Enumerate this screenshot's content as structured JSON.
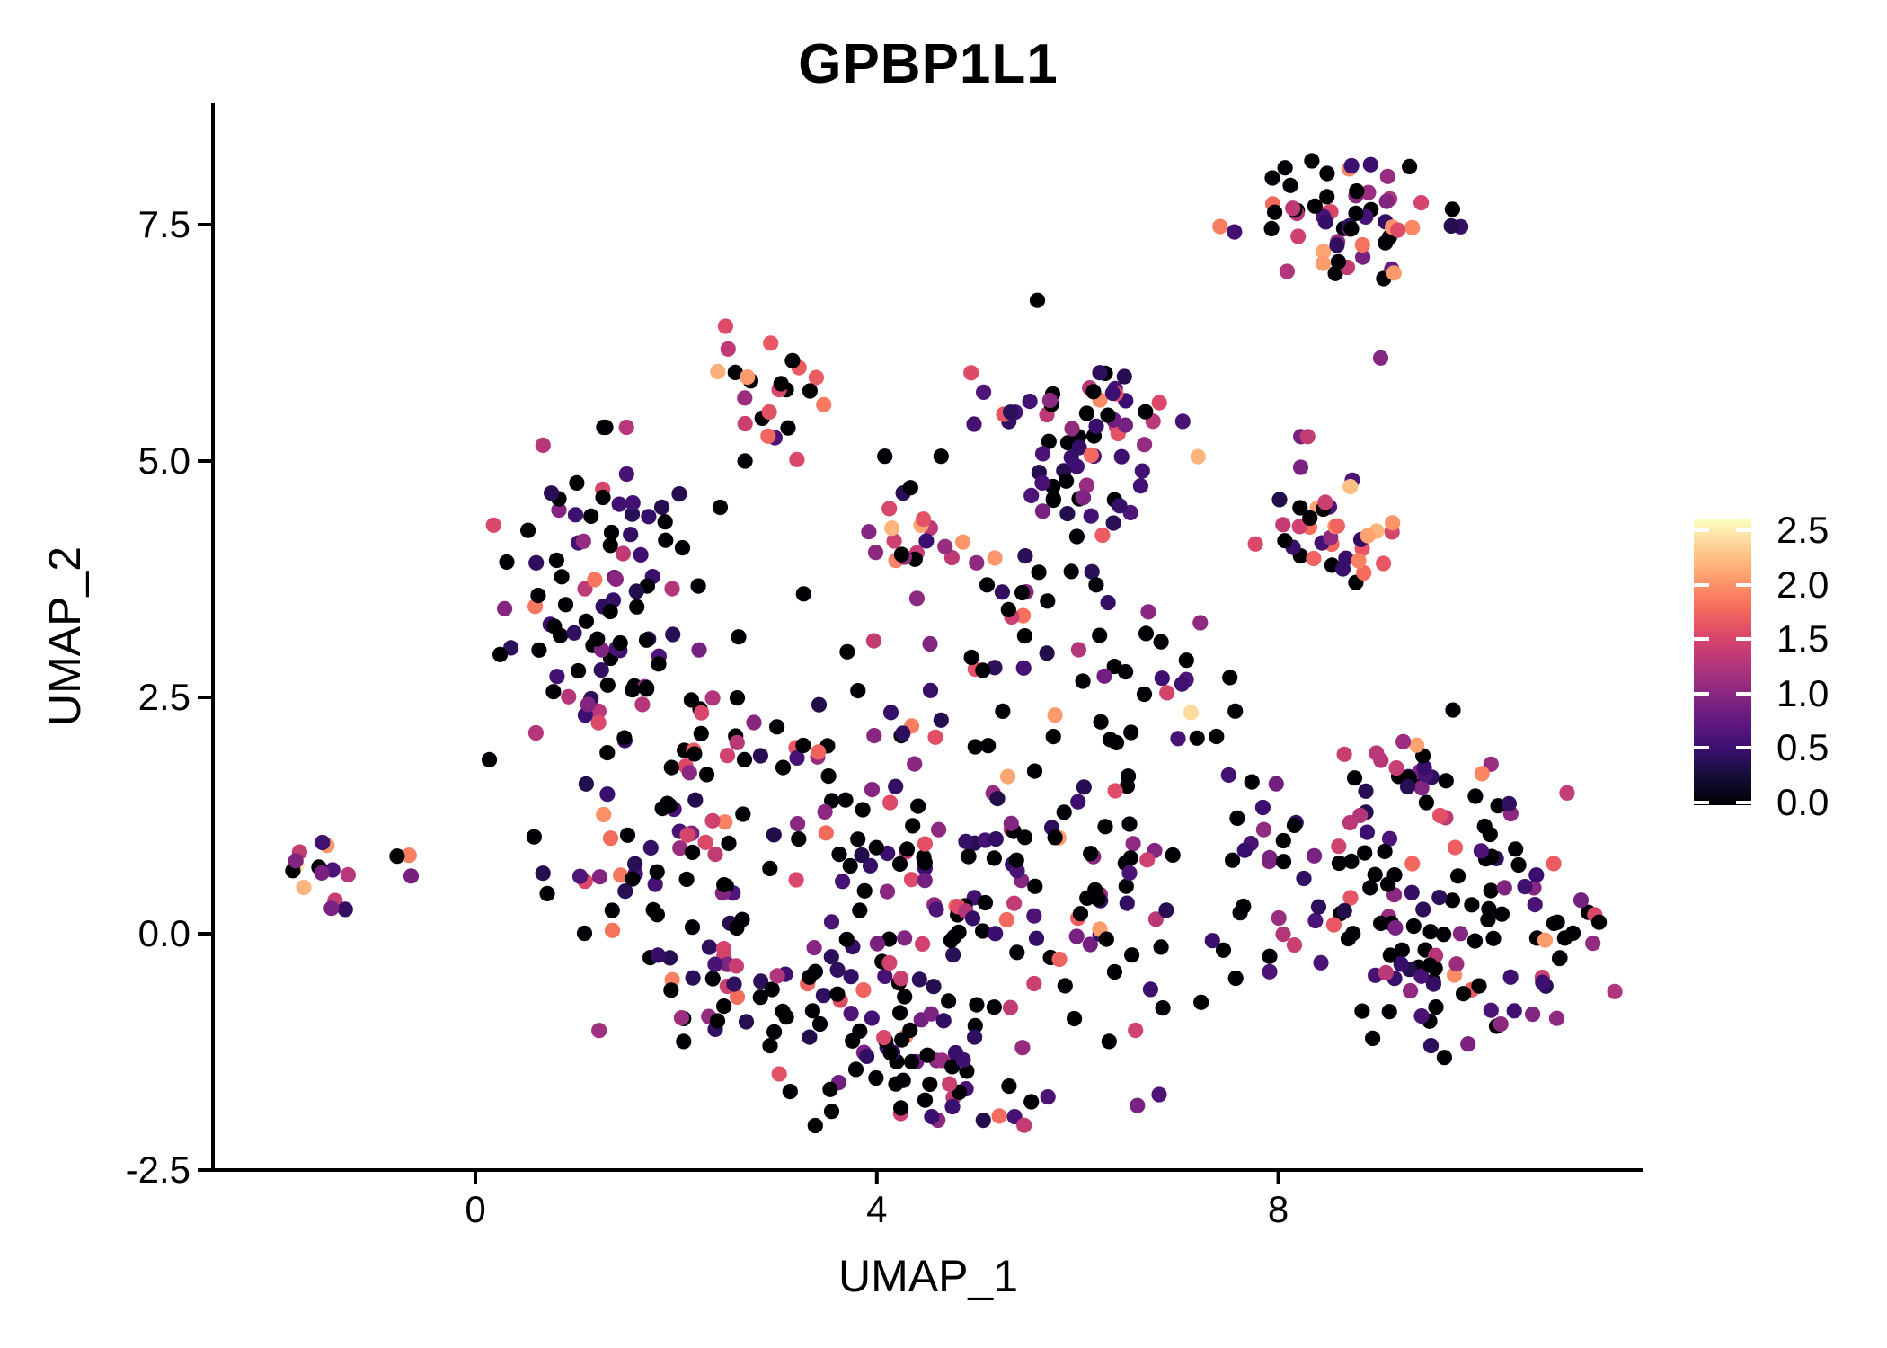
{
  "chart_data": {
    "type": "scatter",
    "title": "GPBP1L1",
    "xlabel": "UMAP_1",
    "ylabel": "UMAP_2",
    "x_ticks": [
      {
        "value": 0,
        "label": "0"
      },
      {
        "value": 4,
        "label": "4"
      },
      {
        "value": 8,
        "label": "8"
      }
    ],
    "y_ticks": [
      {
        "value": 7.5,
        "label": "7.5"
      },
      {
        "value": 5.0,
        "label": "5.0"
      },
      {
        "value": 2.5,
        "label": "2.5"
      },
      {
        "value": 0.0,
        "label": "0.0"
      },
      {
        "value": -2.5,
        "label": "-2.5"
      }
    ],
    "xlim": [
      -2.6,
      11.6
    ],
    "ylim": [
      -2.5,
      8.8
    ],
    "grid": false,
    "point_radius_px": 8.6,
    "axis_color": "#000000",
    "background": "#ffffff",
    "colormap": {
      "name": "magma",
      "stops": [
        "#000004",
        "#140e36",
        "#3b0f70",
        "#641a80",
        "#8c2981",
        "#b73779",
        "#de4968",
        "#f7705c",
        "#fe9f6d",
        "#fecf92",
        "#fcfdbf"
      ],
      "domain": [
        0,
        2.6
      ]
    },
    "legend": {
      "position": "right",
      "ticks": [
        {
          "value": 2.5,
          "label": "2.5"
        },
        {
          "value": 2.0,
          "label": "2.0"
        },
        {
          "value": 1.5,
          "label": "1.5"
        },
        {
          "value": 1.0,
          "label": "1.0"
        },
        {
          "value": 0.5,
          "label": "0.5"
        },
        {
          "value": 0.0,
          "label": "0.0"
        }
      ]
    },
    "seed": 7,
    "clusters": [
      {
        "name": "top-right",
        "x": 8.69,
        "y": 7.5,
        "sx": 0.49,
        "sy": 0.32,
        "n": 58,
        "mix": [
          [
            0,
            0.4
          ],
          [
            0.5,
            0.2
          ],
          [
            1.0,
            0.14
          ],
          [
            1.4,
            0.1
          ],
          [
            1.7,
            0.06
          ],
          [
            2.0,
            0.07
          ],
          [
            2.3,
            0.03
          ]
        ]
      },
      {
        "name": "right-mid-warm",
        "x": 8.6,
        "y": 4.27,
        "sx": 0.36,
        "sy": 0.43,
        "n": 38,
        "mix": [
          [
            0,
            0.22
          ],
          [
            0.5,
            0.16
          ],
          [
            1.0,
            0.12
          ],
          [
            1.4,
            0.14
          ],
          [
            1.7,
            0.12
          ],
          [
            2.0,
            0.16
          ],
          [
            2.3,
            0.08
          ]
        ]
      },
      {
        "name": "top-middle-small",
        "x": 3.01,
        "y": 5.69,
        "sx": 0.31,
        "sy": 0.32,
        "n": 24,
        "mix": [
          [
            0,
            0.38
          ],
          [
            0.5,
            0.14
          ],
          [
            1.0,
            0.12
          ],
          [
            1.4,
            0.1
          ],
          [
            1.7,
            0.11
          ],
          [
            2.0,
            0.12
          ],
          [
            2.3,
            0.03
          ]
        ]
      },
      {
        "name": "top-purple",
        "x": 6.05,
        "y": 5.17,
        "sx": 0.5,
        "sy": 0.52,
        "n": 72,
        "mix": [
          [
            0,
            0.24
          ],
          [
            0.5,
            0.44
          ],
          [
            1.0,
            0.12
          ],
          [
            1.4,
            0.08
          ],
          [
            1.7,
            0.06
          ],
          [
            2.0,
            0.04
          ],
          [
            2.3,
            0.02
          ]
        ]
      },
      {
        "name": "left-dark",
        "x": 1.28,
        "y": 3.7,
        "sx": 0.5,
        "sy": 0.72,
        "n": 92,
        "mix": [
          [
            0,
            0.52
          ],
          [
            0.5,
            0.22
          ],
          [
            1.0,
            0.11
          ],
          [
            1.4,
            0.07
          ],
          [
            1.7,
            0.04
          ],
          [
            2.0,
            0.03
          ],
          [
            2.3,
            0.01
          ]
        ]
      },
      {
        "name": "far-left-small",
        "x": -1.54,
        "y": 0.64,
        "sx": 0.17,
        "sy": 0.17,
        "n": 12,
        "mix": [
          [
            0,
            0.22
          ],
          [
            0.5,
            0.25
          ],
          [
            1.0,
            0.2
          ],
          [
            1.4,
            0.18
          ],
          [
            1.7,
            0.08
          ],
          [
            2.0,
            0.07
          ]
        ]
      },
      {
        "name": "blob-upper",
        "x": 3.14,
        "y": 1.99,
        "sx": 0.8,
        "sy": 0.5,
        "n": 45,
        "mix": [
          [
            0,
            0.4
          ],
          [
            0.5,
            0.2
          ],
          [
            1.0,
            0.14
          ],
          [
            1.4,
            0.12
          ],
          [
            1.7,
            0.09
          ],
          [
            2.0,
            0.04
          ],
          [
            2.3,
            0.01
          ]
        ]
      },
      {
        "name": "blob-left",
        "x": 1.93,
        "y": 0.7,
        "sx": 0.68,
        "sy": 0.75,
        "n": 68,
        "mix": [
          [
            0,
            0.36
          ],
          [
            0.5,
            0.22
          ],
          [
            1.0,
            0.16
          ],
          [
            1.4,
            0.13
          ],
          [
            1.7,
            0.08
          ],
          [
            2.0,
            0.04
          ],
          [
            2.3,
            0.01
          ]
        ]
      },
      {
        "name": "blob-center",
        "x": 4.66,
        "y": 0.37,
        "sx": 0.95,
        "sy": 0.75,
        "n": 80,
        "mix": [
          [
            0,
            0.42
          ],
          [
            0.5,
            0.2
          ],
          [
            1.0,
            0.14
          ],
          [
            1.4,
            0.12
          ],
          [
            1.7,
            0.08
          ],
          [
            2.0,
            0.03
          ],
          [
            2.3,
            0.01
          ]
        ]
      },
      {
        "name": "blob-right",
        "x": 6.32,
        "y": 0.61,
        "sx": 0.8,
        "sy": 0.8,
        "n": 72,
        "mix": [
          [
            0,
            0.46
          ],
          [
            0.5,
            0.24
          ],
          [
            1.0,
            0.12
          ],
          [
            1.4,
            0.1
          ],
          [
            1.7,
            0.05
          ],
          [
            2.0,
            0.03
          ]
        ]
      },
      {
        "name": "blob-bottom",
        "x": 4.49,
        "y": -1.15,
        "sx": 1.05,
        "sy": 0.48,
        "n": 55,
        "mix": [
          [
            0,
            0.46
          ],
          [
            0.5,
            0.28
          ],
          [
            1.0,
            0.12
          ],
          [
            1.4,
            0.09
          ],
          [
            1.7,
            0.04
          ],
          [
            2.0,
            0.01
          ]
        ]
      },
      {
        "name": "blob-bottom-tip",
        "x": 4.8,
        "y": -1.82,
        "sx": 0.55,
        "sy": 0.2,
        "n": 16,
        "mix": [
          [
            0,
            0.5
          ],
          [
            0.5,
            0.3
          ],
          [
            1.0,
            0.1
          ],
          [
            1.4,
            0.1
          ]
        ]
      },
      {
        "name": "blob-lowleft-arm",
        "x": 3.1,
        "y": -0.77,
        "sx": 0.5,
        "sy": 0.4,
        "n": 30,
        "mix": [
          [
            0,
            0.44
          ],
          [
            0.5,
            0.26
          ],
          [
            1.0,
            0.14
          ],
          [
            1.4,
            0.1
          ],
          [
            1.7,
            0.04
          ],
          [
            2.0,
            0.02
          ]
        ]
      },
      {
        "name": "mid-right-sub",
        "x": 6.81,
        "y": 2.54,
        "sx": 0.45,
        "sy": 0.38,
        "n": 24,
        "mix": [
          [
            0,
            0.44
          ],
          [
            0.5,
            0.3
          ],
          [
            1.0,
            0.14
          ],
          [
            1.4,
            0.05
          ],
          [
            1.7,
            0.03
          ],
          [
            2.0,
            0.02
          ],
          [
            2.5,
            0.02
          ]
        ]
      },
      {
        "name": "mid-chain",
        "x": 4.49,
        "y": 4.22,
        "sx": 0.4,
        "sy": 0.24,
        "n": 17,
        "mix": [
          [
            0,
            0.28
          ],
          [
            0.5,
            0.2
          ],
          [
            1.0,
            0.16
          ],
          [
            1.4,
            0.16
          ],
          [
            1.7,
            0.1
          ],
          [
            2.0,
            0.06
          ],
          [
            2.3,
            0.04
          ]
        ]
      },
      {
        "name": "mid-sparse",
        "x": 5.11,
        "y": 3.32,
        "sx": 0.8,
        "sy": 0.42,
        "n": 28,
        "mix": [
          [
            0,
            0.48
          ],
          [
            0.5,
            0.26
          ],
          [
            1.0,
            0.14
          ],
          [
            1.4,
            0.08
          ],
          [
            1.7,
            0.04
          ]
        ]
      },
      {
        "name": "right-top-arm",
        "x": 9.32,
        "y": 1.63,
        "sx": 0.5,
        "sy": 0.33,
        "n": 30,
        "mix": [
          [
            0,
            0.24
          ],
          [
            0.5,
            0.26
          ],
          [
            1.0,
            0.2
          ],
          [
            1.4,
            0.14
          ],
          [
            1.7,
            0.08
          ],
          [
            2.0,
            0.07
          ],
          [
            2.3,
            0.01
          ]
        ]
      },
      {
        "name": "right-main",
        "x": 9.34,
        "y": 0.47,
        "sx": 0.62,
        "sy": 0.56,
        "n": 62,
        "mix": [
          [
            0,
            0.44
          ],
          [
            0.5,
            0.26
          ],
          [
            1.0,
            0.13
          ],
          [
            1.4,
            0.11
          ],
          [
            1.7,
            0.04
          ],
          [
            2.0,
            0.02
          ]
        ]
      },
      {
        "name": "right-bottom",
        "x": 9.77,
        "y": -0.48,
        "sx": 0.62,
        "sy": 0.42,
        "n": 38,
        "mix": [
          [
            0,
            0.46
          ],
          [
            0.5,
            0.3
          ],
          [
            1.0,
            0.12
          ],
          [
            1.4,
            0.08
          ],
          [
            1.7,
            0.03
          ],
          [
            2.0,
            0.01
          ]
        ]
      },
      {
        "name": "right-edge",
        "x": 10.69,
        "y": 0.37,
        "sx": 0.3,
        "sy": 0.55,
        "n": 20,
        "mix": [
          [
            0,
            0.4
          ],
          [
            0.5,
            0.2
          ],
          [
            1.0,
            0.15
          ],
          [
            1.4,
            0.13
          ],
          [
            1.7,
            0.07
          ],
          [
            2.0,
            0.05
          ]
        ]
      },
      {
        "name": "bridge",
        "x": 7.87,
        "y": 0.85,
        "sx": 0.22,
        "sy": 0.42,
        "n": 8,
        "mix": [
          [
            0,
            0.5
          ],
          [
            0.5,
            0.22
          ],
          [
            1.0,
            0.14
          ],
          [
            1.4,
            0.14
          ]
        ]
      }
    ],
    "extra_points": [
      [
        -1.78,
        0.72,
        2.5
      ],
      [
        -1.71,
        0.49,
        2.2
      ],
      [
        -0.66,
        0.83,
        1.9
      ],
      [
        -0.64,
        0.61,
        0.9
      ],
      [
        -0.78,
        0.82,
        0.0
      ],
      [
        0.14,
        1.84,
        0.0
      ],
      [
        2.44,
        4.51,
        0.0
      ],
      [
        4.08,
        5.05,
        0.0
      ],
      [
        4.64,
        5.05,
        0.0
      ],
      [
        7.42,
        7.48,
        1.9
      ],
      [
        9.05,
        6.93,
        0.0
      ],
      [
        9.13,
        7.03,
        0.8
      ],
      [
        9.02,
        6.09,
        1.0
      ],
      [
        7.13,
        2.34,
        2.4
      ],
      [
        4.15,
        4.29,
        2.2
      ],
      [
        5.6,
        6.7,
        0.0
      ]
    ]
  },
  "layout_note": "UMAP feature plot, expression scale 0.0-2.5, magma colors"
}
